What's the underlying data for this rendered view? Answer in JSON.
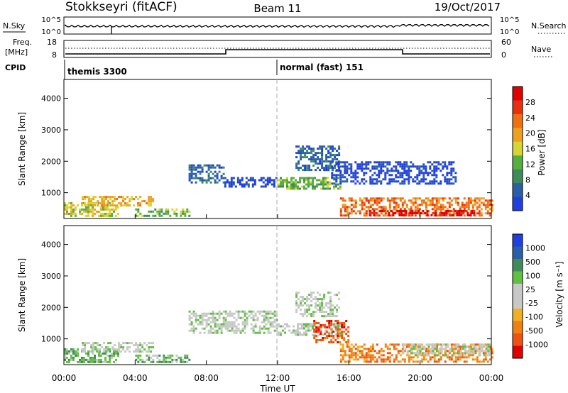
{
  "header": {
    "station": "Stokkseyri (fitACF)",
    "beam": "Beam 11",
    "date": "19/Oct/2017"
  },
  "top_panels": {
    "nsky_label": "N.Sky",
    "nsky_ticks": [
      "10^5",
      "10^0"
    ],
    "nsearch_label": "N.Search",
    "nsearch_ticks": [
      "10^5",
      "10^0"
    ],
    "freq_label_1": "Freq.",
    "freq_label_2": "[MHz]",
    "freq_ticks": [
      "18",
      "8"
    ],
    "nave_label": "Nave",
    "nave_ticks": [
      "60",
      "0"
    ],
    "cpid_label": "CPID",
    "cpid_segments": [
      {
        "name": "themis 3300",
        "start_hour": 0,
        "end_hour": 12
      },
      {
        "name": "normal (fast) 151",
        "start_hour": 12,
        "end_hour": 24
      }
    ]
  },
  "colors": {
    "power": [
      "#1f3fe0",
      "#2a5fa8",
      "#3f8c5a",
      "#55b040",
      "#d8d430",
      "#f0a020",
      "#f07010",
      "#e83010",
      "#e00000"
    ],
    "velocity": [
      "#1f3fe0",
      "#2a5fa8",
      "#3f8c5a",
      "#60c040",
      "#c8c8c8",
      "#c8c8c8",
      "#f0b020",
      "#f08010",
      "#f05010",
      "#e00000"
    ]
  },
  "chart_data": [
    {
      "type": "heatmap",
      "name": "power",
      "xlabel": "",
      "ylabel": "Slant Range [km]",
      "xlim": [
        0,
        24
      ],
      "ylim": [
        180,
        4600
      ],
      "yticks": [
        "1000",
        "2000",
        "3000",
        "4000"
      ],
      "colorbar_label": "Power [dB]",
      "colorbar_ticks": [
        "4",
        "8",
        "12",
        "16",
        "20",
        "24",
        "28"
      ],
      "regions": [
        {
          "x": [
            0,
            3
          ],
          "y": [
            250,
            700
          ],
          "level": 4
        },
        {
          "x": [
            1,
            5
          ],
          "y": [
            600,
            900
          ],
          "level": 5
        },
        {
          "x": [
            4,
            7
          ],
          "y": [
            250,
            500
          ],
          "level": 3
        },
        {
          "x": [
            7,
            9
          ],
          "y": [
            1300,
            1900
          ],
          "level": 1
        },
        {
          "x": [
            9,
            12
          ],
          "y": [
            1200,
            1500
          ],
          "level": 0
        },
        {
          "x": [
            12,
            15.5
          ],
          "y": [
            1100,
            1500
          ],
          "level": 3
        },
        {
          "x": [
            13,
            15.5
          ],
          "y": [
            1700,
            2500
          ],
          "level": 1
        },
        {
          "x": [
            15.5,
            24
          ],
          "y": [
            250,
            850
          ],
          "level": 6
        },
        {
          "x": [
            17,
            23
          ],
          "y": [
            250,
            450
          ],
          "level": 8
        },
        {
          "x": [
            15,
            22
          ],
          "y": [
            1300,
            2000
          ],
          "level": 0
        }
      ]
    },
    {
      "type": "heatmap",
      "name": "velocity",
      "xlabel": "Time UT",
      "ylabel": "Slant Range [km]",
      "xlim": [
        0,
        24
      ],
      "ylim": [
        180,
        4600
      ],
      "xticks": [
        "00:00",
        "04:00",
        "08:00",
        "12:00",
        "16:00",
        "20:00",
        "00:00"
      ],
      "yticks": [
        "1000",
        "2000",
        "3000",
        "4000"
      ],
      "colorbar_label": "Velocity [m s⁻¹]",
      "colorbar_ticks": [
        "1000",
        "500",
        "100",
        "25",
        "-25",
        "-100",
        "-500",
        "-1000"
      ],
      "regions": [
        {
          "x": [
            0,
            3
          ],
          "y": [
            250,
            700
          ],
          "level": 3
        },
        {
          "x": [
            1,
            5
          ],
          "y": [
            600,
            900
          ],
          "level": 4
        },
        {
          "x": [
            4,
            7
          ],
          "y": [
            250,
            500
          ],
          "level": 3
        },
        {
          "x": [
            7,
            12
          ],
          "y": [
            1200,
            1900
          ],
          "level": 4
        },
        {
          "x": [
            12,
            15.5
          ],
          "y": [
            1100,
            1500
          ],
          "level": 4
        },
        {
          "x": [
            13,
            15.5
          ],
          "y": [
            1700,
            2500
          ],
          "level": 4
        },
        {
          "x": [
            15.5,
            24
          ],
          "y": [
            250,
            850
          ],
          "level": 7
        },
        {
          "x": [
            19,
            24
          ],
          "y": [
            450,
            850
          ],
          "level": 4
        },
        {
          "x": [
            14,
            16
          ],
          "y": [
            900,
            1600
          ],
          "level": 8
        }
      ]
    }
  ]
}
